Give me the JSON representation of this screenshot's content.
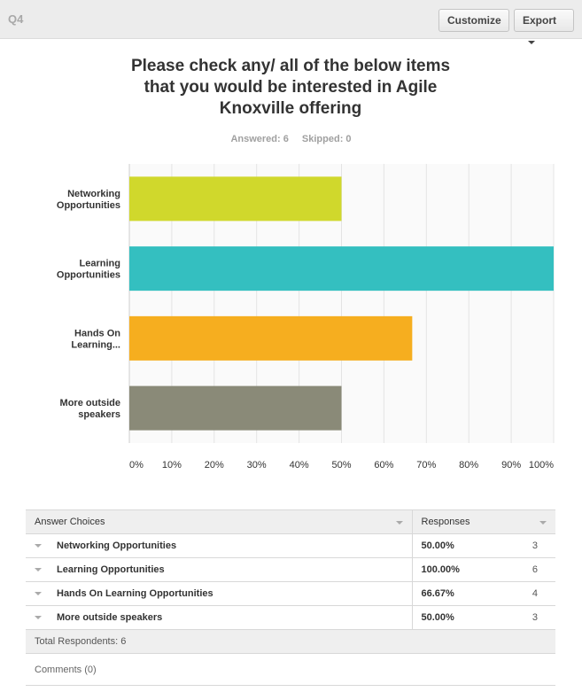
{
  "header": {
    "question_label": "Q4",
    "customize_label": "Customize",
    "export_label": "Export"
  },
  "title_lines": [
    "Please check any/ all of the below items",
    "that you would be interested in Agile",
    "Knoxville offering"
  ],
  "stats": {
    "answered": "Answered: 6",
    "skipped": "Skipped: 0"
  },
  "chart_data": {
    "type": "bar",
    "orientation": "horizontal",
    "categories": [
      [
        "Networking",
        "Opportunities"
      ],
      [
        "Learning",
        "Opportunities"
      ],
      [
        "Hands On",
        "Learning..."
      ],
      [
        "More outside",
        "speakers"
      ]
    ],
    "values": [
      50,
      100,
      66.67,
      50
    ],
    "colors": [
      "#d0d82c",
      "#34bfc0",
      "#f6ae1f",
      "#8a8a78"
    ],
    "xlim": [
      0,
      100
    ],
    "x_ticks": [
      "0%",
      "10%",
      "20%",
      "30%",
      "40%",
      "50%",
      "60%",
      "70%",
      "80%",
      "90%",
      "100%"
    ],
    "grid": true
  },
  "table": {
    "col_answer": "Answer Choices",
    "col_responses": "Responses",
    "rows": [
      {
        "choice": "Networking Opportunities",
        "percent": "50.00%",
        "count": "3"
      },
      {
        "choice": "Learning Opportunities",
        "percent": "100.00%",
        "count": "6"
      },
      {
        "choice": "Hands On Learning Opportunities",
        "percent": "66.67%",
        "count": "4"
      },
      {
        "choice": "More outside speakers",
        "percent": "50.00%",
        "count": "3"
      }
    ],
    "total": "Total Respondents: 6",
    "comments": "Comments (0)"
  }
}
